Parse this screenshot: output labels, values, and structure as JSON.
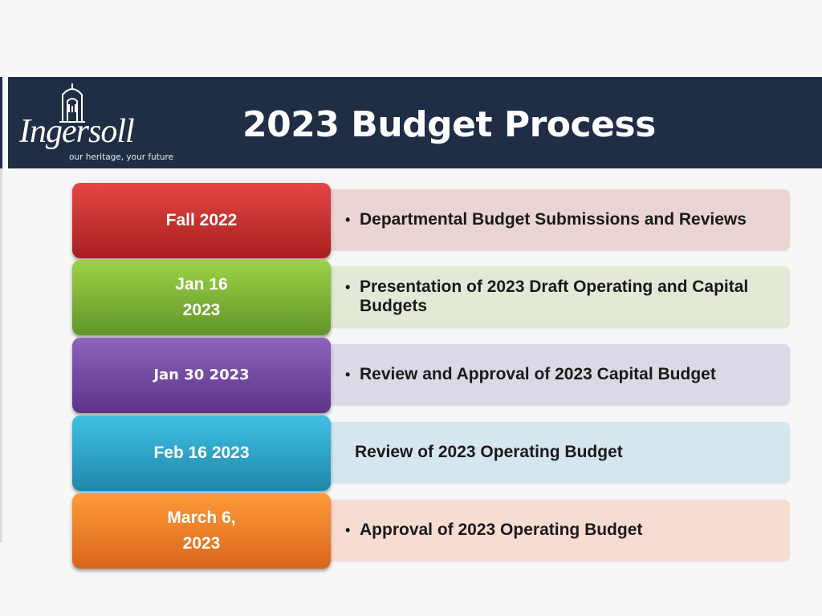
{
  "header": {
    "title": "2023 Budget Process",
    "logo": {
      "name": "Ingersoll",
      "tagline": "our heritage, your future"
    }
  },
  "timeline": [
    {
      "date_lines": [
        "Fall 2022"
      ],
      "detail": "Departmental Budget Submissions and Reviews",
      "bulleted": true,
      "color": "#c62f31",
      "panel_color": "#ead4d4"
    },
    {
      "date_lines": [
        "Jan 16",
        "2023"
      ],
      "detail": "Presentation of 2023 Draft Operating and Capital Budgets",
      "bulleted": true,
      "color": "#7fb537",
      "panel_color": "#e3e9d7"
    },
    {
      "date_lines": [
        "Jan 30 2023"
      ],
      "detail": "Review and Approval of 2023 Capital Budget",
      "bulleted": true,
      "color": "#7548a3",
      "panel_color": "#dcd8e6"
    },
    {
      "date_lines": [
        "Feb 16 2023"
      ],
      "detail": "Review of 2023 Operating Budget",
      "bulleted": false,
      "color": "#2ea4c8",
      "panel_color": "#d6e6ee"
    },
    {
      "date_lines": [
        "March 6,",
        "2023"
      ],
      "detail": "Approval of 2023 Operating Budget",
      "bulleted": true,
      "color": "#f07f28",
      "panel_color": "#f7dcd2"
    }
  ],
  "bullet_char": "•",
  "colors": {
    "header_bg": "#1f2d45",
    "page_bg": "#f7f7f8"
  }
}
